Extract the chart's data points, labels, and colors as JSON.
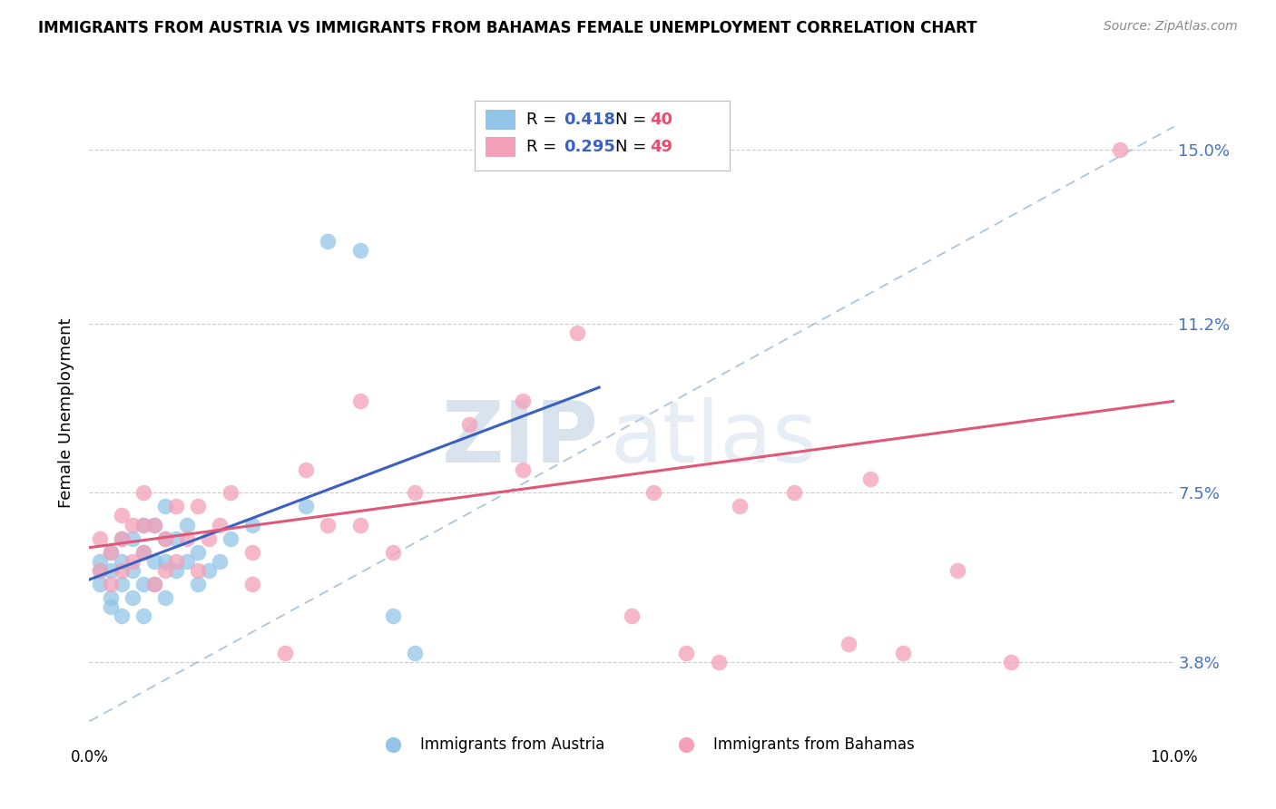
{
  "title": "IMMIGRANTS FROM AUSTRIA VS IMMIGRANTS FROM BAHAMAS FEMALE UNEMPLOYMENT CORRELATION CHART",
  "source": "Source: ZipAtlas.com",
  "ylabel": "Female Unemployment",
  "xlim": [
    0.0,
    0.1
  ],
  "ylim": [
    0.02,
    0.165
  ],
  "ytick_vals": [
    0.038,
    0.075,
    0.112,
    0.15
  ],
  "ytick_labels": [
    "3.8%",
    "7.5%",
    "11.2%",
    "15.0%"
  ],
  "austria_color": "#92C5E8",
  "bahamas_color": "#F4A0B8",
  "austria_line_color": "#3A60C0",
  "bahamas_line_color": "#E05878",
  "diag_line_color": "#9BBCD8",
  "watermark_zip": "ZIP",
  "watermark_atlas": "atlas",
  "austria_x": [
    0.001,
    0.001,
    0.001,
    0.002,
    0.002,
    0.002,
    0.002,
    0.003,
    0.003,
    0.003,
    0.003,
    0.004,
    0.004,
    0.004,
    0.005,
    0.005,
    0.005,
    0.005,
    0.006,
    0.006,
    0.006,
    0.007,
    0.007,
    0.007,
    0.007,
    0.008,
    0.008,
    0.009,
    0.009,
    0.01,
    0.01,
    0.011,
    0.012,
    0.013,
    0.015,
    0.02,
    0.022,
    0.025,
    0.028,
    0.03
  ],
  "austria_y": [
    0.055,
    0.058,
    0.06,
    0.05,
    0.052,
    0.058,
    0.062,
    0.048,
    0.055,
    0.06,
    0.065,
    0.052,
    0.058,
    0.065,
    0.048,
    0.055,
    0.062,
    0.068,
    0.055,
    0.06,
    0.068,
    0.052,
    0.06,
    0.065,
    0.072,
    0.058,
    0.065,
    0.06,
    0.068,
    0.055,
    0.062,
    0.058,
    0.06,
    0.065,
    0.068,
    0.072,
    0.13,
    0.128,
    0.048,
    0.04
  ],
  "bahamas_x": [
    0.001,
    0.001,
    0.002,
    0.002,
    0.003,
    0.003,
    0.003,
    0.004,
    0.004,
    0.005,
    0.005,
    0.005,
    0.006,
    0.006,
    0.007,
    0.007,
    0.008,
    0.008,
    0.009,
    0.01,
    0.01,
    0.011,
    0.012,
    0.013,
    0.015,
    0.015,
    0.018,
    0.02,
    0.022,
    0.025,
    0.025,
    0.028,
    0.03,
    0.035,
    0.04,
    0.04,
    0.045,
    0.05,
    0.052,
    0.055,
    0.058,
    0.06,
    0.065,
    0.07,
    0.072,
    0.075,
    0.08,
    0.085,
    0.095
  ],
  "bahamas_y": [
    0.058,
    0.065,
    0.055,
    0.062,
    0.058,
    0.065,
    0.07,
    0.06,
    0.068,
    0.062,
    0.068,
    0.075,
    0.055,
    0.068,
    0.058,
    0.065,
    0.06,
    0.072,
    0.065,
    0.058,
    0.072,
    0.065,
    0.068,
    0.075,
    0.055,
    0.062,
    0.04,
    0.08,
    0.068,
    0.068,
    0.095,
    0.062,
    0.075,
    0.09,
    0.095,
    0.08,
    0.11,
    0.048,
    0.075,
    0.04,
    0.038,
    0.072,
    0.075,
    0.042,
    0.078,
    0.04,
    0.058,
    0.038,
    0.15
  ]
}
